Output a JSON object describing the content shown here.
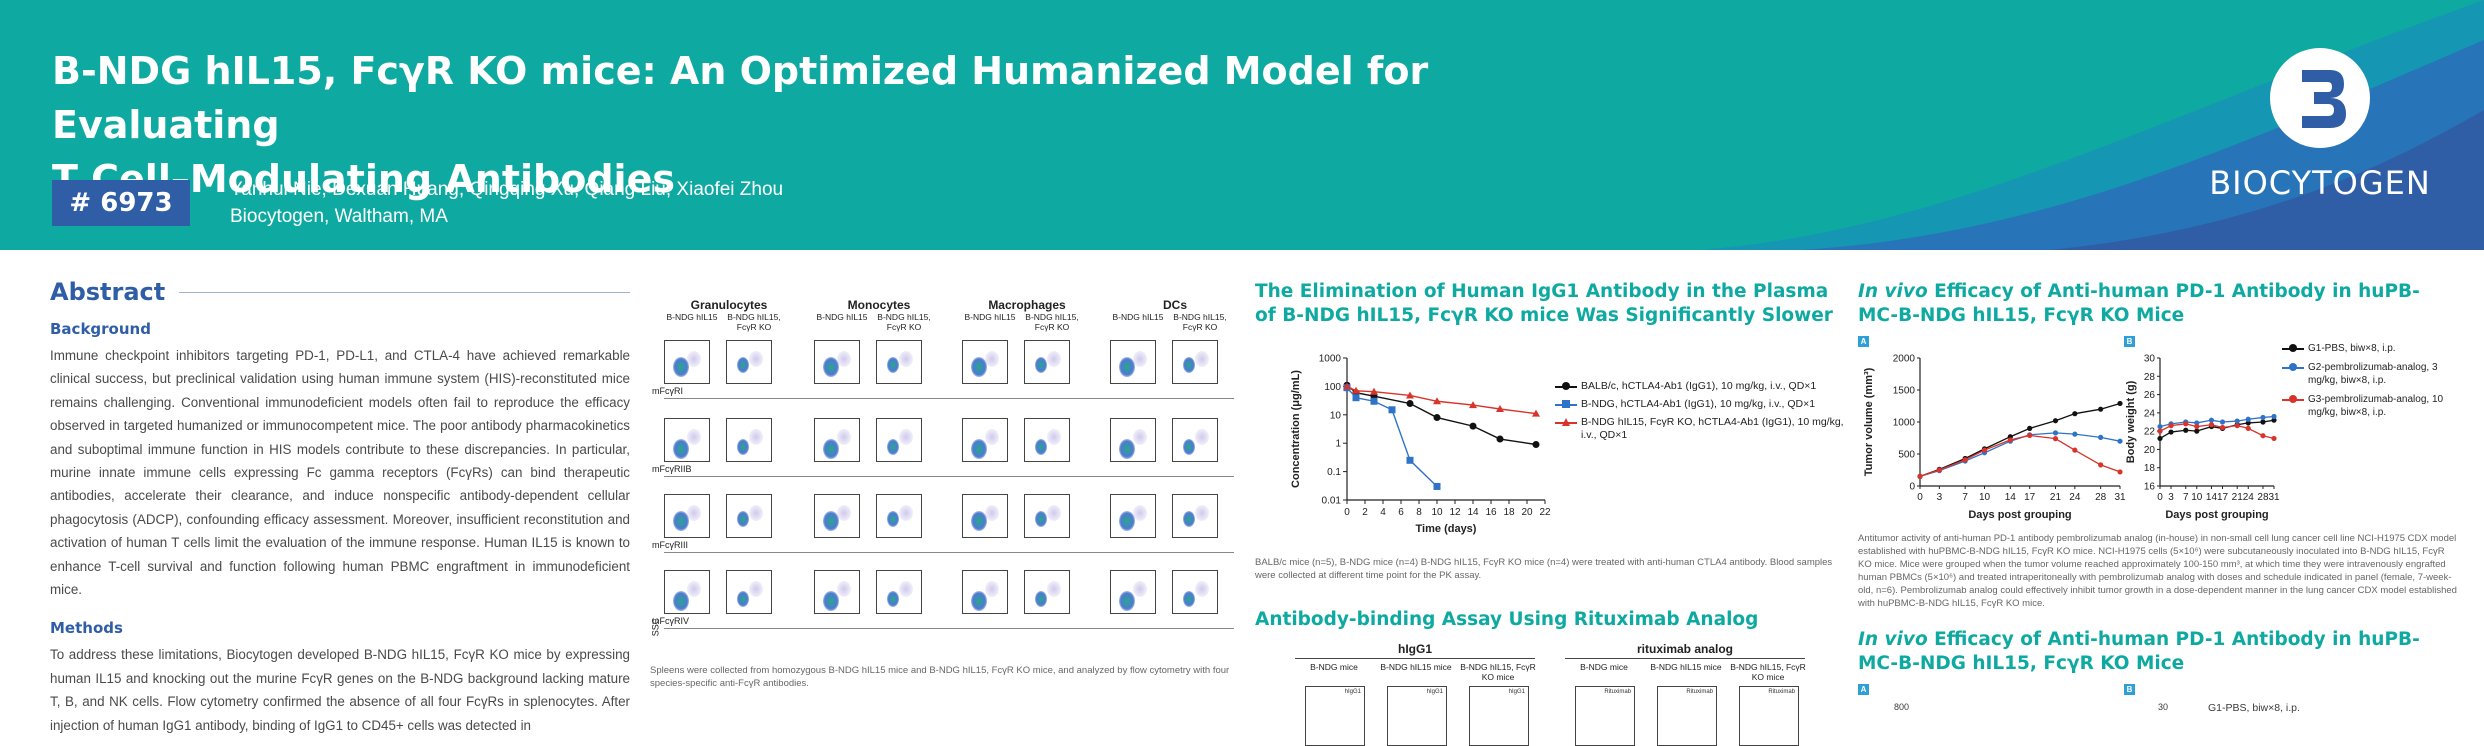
{
  "header": {
    "title_line1": "B-NDG hIL15, FcγR KO mice: An Optimized Humanized Model for Evaluating",
    "title_line2": "T Cell–Modulating Antibodies",
    "poster_id": "# 6973",
    "authors": "Yanhui Nie, Dexuan Huang, Qingqing Xu, Qiang Liu, Xiaofei Zhou",
    "affiliation": "Biocytogen, Waltham, MA",
    "logo_text": "BIOCYTOGEN",
    "colors": {
      "teal": "#0eaaa1",
      "blue": "#2f5ea6"
    }
  },
  "abstract": {
    "title": "Abstract",
    "background_heading": "Background",
    "background_text": "Immune checkpoint inhibitors targeting PD-1, PD-L1, and CTLA-4 have achieved remarkable clinical success, but preclinical validation using human immune system (HIS)-reconstituted mice remains challenging. Conventional immunodeficient models often fail to reproduce the efficacy observed in targeted humanized or immunocompetent mice. The poor antibody pharmacokinetics and suboptimal immune function in HIS models contribute to these discrepancies. In particular, murine innate immune cells expressing Fc gamma receptors (FcγRs) can bind therapeutic antibodies, accelerate their clearance, and induce nonspecific antibody-dependent cellular phagocytosis (ADCP), confounding efficacy assessment. Moreover, insufficient reconstitution and activation of human T cells limit the evaluation of the immune response. Human IL15 is known to enhance T-cell survival and function following human PBMC engraftment in immunodeficient mice.",
    "methods_heading": "Methods",
    "methods_text": "To address these limitations, Biocytogen developed B-NDG hIL15, FcγR KO mice by expressing human IL15 and knocking out the murine FcγR genes on the B-NDG background lacking mature T, B, and NK cells. Flow cytometry confirmed the absence of all four FcγRs in splenocytes. After injection of human IgG1 antibody, binding of IgG1 to CD45+ cells was detected in"
  },
  "flow": {
    "groups": [
      "Granulocytes",
      "Monocytes",
      "Macrophages",
      "DCs"
    ],
    "strains": [
      "B-NDG hIL15",
      "B-NDG hIL15, FcγR KO"
    ],
    "rows": [
      "mFcγRI",
      "mFcγRIIB",
      "mFcγRIII",
      "mFcγRIV"
    ],
    "y_label": "SSC",
    "caption": "Spleens were collected from homozygous B-NDG hIL15 mice and B-NDG hIL15, FcγR KO mice, and analyzed by flow cytometry with four species-specific anti-FcγR antibodies."
  },
  "pk": {
    "title": "The Elimination of Human IgG1 Antibody in the Plasma of B-NDG hIL15, FcγR KO mice Was Significantly Slower",
    "caption": "BALB/c mice (n=5), B-NDG mice (n=4) B-NDG hIL15, FcγR KO mice (n=4) were treated with anti-human CTLA4 antibody. Blood samples were collected at different time point for the PK assay.",
    "chart_data": {
      "type": "line",
      "xlabel": "Time (days)",
      "ylabel": "Concentration (μg/mL)",
      "x_ticks": [
        0,
        2,
        4,
        6,
        8,
        10,
        12,
        14,
        16,
        18,
        20,
        22
      ],
      "y_ticks": [
        "1000",
        "100",
        "10",
        "1",
        "0.1",
        "0.01"
      ],
      "ylim": [
        0.01,
        1000
      ],
      "y_scale": "log",
      "series": [
        {
          "name": "BALB/c, hCTLA4-Ab1 (IgG1), 10 mg/kg, i.v., QD×1",
          "color": "#111111",
          "marker": "circle",
          "x": [
            0,
            1,
            3,
            7,
            10,
            14,
            17,
            21
          ],
          "y": [
            110,
            60,
            45,
            25,
            8,
            4,
            1.4,
            0.9
          ]
        },
        {
          "name": "B-NDG, hCTLA4-Ab1 (IgG1), 10 mg/kg, i.v., QD×1",
          "color": "#2f73c9",
          "marker": "square",
          "x": [
            0,
            1,
            3,
            5,
            7,
            10
          ],
          "y": [
            90,
            40,
            30,
            15,
            0.25,
            0.03
          ]
        },
        {
          "name": "B-NDG hIL15, FcγR KO, hCTLA4-Ab1 (IgG1), 10 mg/kg, i.v., QD×1",
          "color": "#d9342b",
          "marker": "triangle",
          "x": [
            0,
            1,
            3,
            7,
            10,
            14,
            17,
            21
          ],
          "y": [
            100,
            70,
            65,
            48,
            30,
            22,
            16,
            11
          ]
        }
      ]
    }
  },
  "binding": {
    "title": "Antibody-binding Assay Using Rituximab Analog",
    "groups": [
      "hIgG1",
      "rituximab analog"
    ],
    "strains": [
      "B-NDG mice",
      "B-NDG hIL15 mice",
      "B-NDG hIL15, FcγR KO mice"
    ],
    "panel_labels_1": [
      "hIgG1",
      "hIgG1",
      "hIgG1"
    ],
    "panel_labels_2": [
      "Rituximab",
      "Rituximab",
      "Rituximab"
    ]
  },
  "efficacy1": {
    "title": "In vivo Efficacy of Anti-human PD-1 Antibody in huPB-MC-B-NDG hIL15, FcγR KO Mice",
    "title_em": "In vivo",
    "title_rest": " Efficacy of Anti-human PD-1 Antibody in huPB-MC-B-NDG hIL15, FcγR KO Mice",
    "panel_a": "A",
    "panel_b": "B",
    "legend": [
      {
        "name": "G1-PBS, biw×8, i.p.",
        "color": "#111111"
      },
      {
        "name": "G2-pembrolizumab-analog, 3 mg/kg, biw×8, i.p.",
        "color": "#2f73c9"
      },
      {
        "name": "G3-pembrolizumab-analog, 10 mg/kg, biw×8, i.p.",
        "color": "#d9342b"
      }
    ],
    "chart_data": [
      {
        "type": "line",
        "xlabel": "Days post grouping",
        "ylabel": "Tumor volume (mm³)",
        "x_ticks": [
          0,
          3,
          7,
          10,
          14,
          17,
          21,
          24,
          28,
          31
        ],
        "y_ticks": [
          0,
          500,
          1000,
          1500,
          2000
        ],
        "ylim": [
          0,
          2000
        ],
        "series": [
          {
            "name": "G1-PBS, biw×8, i.p.",
            "color": "#111111",
            "x": [
              0,
              3,
              7,
              10,
              14,
              17,
              21,
              24,
              28,
              31
            ],
            "y": [
              150,
              260,
              430,
              580,
              770,
              900,
              1020,
              1130,
              1200,
              1290
            ]
          },
          {
            "name": "G2-pembrolizumab-analog, 3 mg/kg, biw×8, i.p.",
            "color": "#2f73c9",
            "x": [
              0,
              3,
              7,
              10,
              14,
              17,
              21,
              24,
              28,
              31
            ],
            "y": [
              150,
              240,
              390,
              520,
              700,
              800,
              830,
              810,
              760,
              700
            ]
          },
          {
            "name": "G3-pembrolizumab-analog, 10 mg/kg, biw×8, i.p.",
            "color": "#d9342b",
            "x": [
              0,
              3,
              7,
              10,
              14,
              17,
              21,
              24,
              28,
              31
            ],
            "y": [
              150,
              250,
              410,
              560,
              720,
              790,
              740,
              560,
              330,
              220
            ]
          }
        ]
      },
      {
        "type": "line",
        "xlabel": "Days post grouping",
        "ylabel": "Body weight (g)",
        "x_ticks": [
          0,
          3,
          7,
          10,
          14,
          17,
          21,
          24,
          28,
          31
        ],
        "y_ticks": [
          16,
          18,
          20,
          22,
          24,
          26,
          28,
          30
        ],
        "ylim": [
          16,
          30
        ],
        "series": [
          {
            "name": "G1-PBS, biw×8, i.p.",
            "color": "#111111",
            "x": [
              0,
              3,
              7,
              10,
              14,
              17,
              21,
              24,
              28,
              31
            ],
            "y": [
              21.2,
              21.9,
              22.1,
              22.0,
              22.5,
              22.3,
              22.7,
              22.9,
              23.0,
              23.2
            ]
          },
          {
            "name": "G2-pembrolizumab-analog, 3 mg/kg, biw×8, i.p.",
            "color": "#2f73c9",
            "x": [
              0,
              3,
              7,
              10,
              14,
              17,
              21,
              24,
              28,
              31
            ],
            "y": [
              22.5,
              22.8,
              23.0,
              22.9,
              23.2,
              23.0,
              23.1,
              23.3,
              23.5,
              23.6
            ]
          },
          {
            "name": "G3-pembrolizumab-analog, 10 mg/kg, biw×8, i.p.",
            "color": "#d9342b",
            "x": [
              0,
              3,
              7,
              10,
              14,
              17,
              21,
              24,
              28,
              31
            ],
            "y": [
              22.0,
              22.6,
              22.8,
              22.5,
              22.7,
              22.4,
              22.6,
              22.3,
              21.5,
              21.2
            ]
          }
        ]
      }
    ],
    "caption": "Antitumor activity of anti-human PD-1 antibody pembrolizumab analog (in-house) in non-small cell lung cancer cell line NCI-H1975 CDX model established with huPBMC-B-NDG hIL15, FcγR KO mice. NCI-H1975 cells (5×10⁶) were subcutaneously inoculated into B-NDG hIL15, FcγR KO mice. Mice were grouped when the tumor volume reached approximately 100-150 mm³, at which time they were intravenously engrafted human PBMCs (5×10⁶) and treated intraperitoneally with pembrolizumab analog with doses and schedule indicated in panel (female, 7-week-old, n=6). Pembrolizumab analog could effectively inhibit tumor growth in a dose-dependent manner in the lung cancer CDX model established with huPBMC-B-NDG hIL15, FcγR KO mice."
  },
  "efficacy2": {
    "title_em": "In vivo",
    "title_rest": " Efficacy of Anti-human PD-1 Antibody in huPB-MC-B-NDG hIL15, FcγR KO Mice",
    "panel_a": "A",
    "panel_b": "B",
    "y_top_a": "800",
    "y_top_b": "30",
    "legend_first": "G1-PBS, biw×8, i.p."
  }
}
